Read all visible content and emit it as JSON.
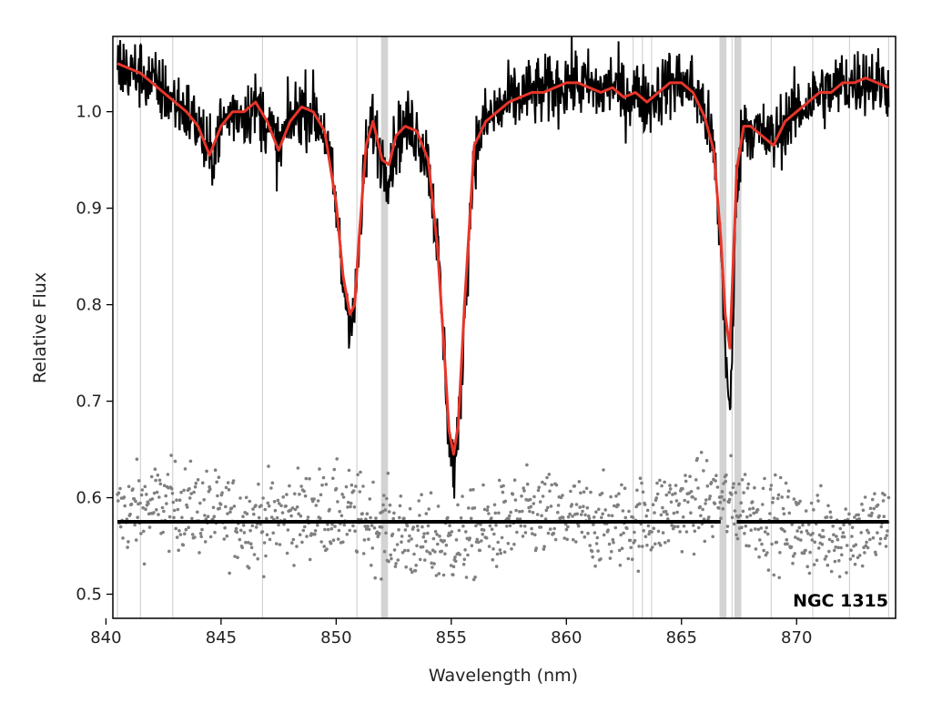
{
  "chart_data": {
    "type": "line",
    "title": "",
    "xlabel": "Wavelength (nm)",
    "ylabel": "Relative Flux",
    "xlim": [
      840.3,
      874.3
    ],
    "ylim": [
      0.475,
      1.078
    ],
    "xticks": [
      840,
      845,
      850,
      855,
      860,
      865,
      870
    ],
    "yticks": [
      0.5,
      0.6,
      0.7,
      0.8,
      0.9,
      1.0
    ],
    "xtick_labels": [
      "840",
      "845",
      "850",
      "855",
      "860",
      "865",
      "870"
    ],
    "ytick_labels": [
      "0.5",
      "0.6",
      "0.7",
      "0.8",
      "0.9",
      "1.0"
    ],
    "grid": false,
    "legend": "none",
    "annotation": "NGC 1315",
    "colors": {
      "observed": "#000000",
      "model": "#e8352a",
      "residuals": "#808080",
      "zero_line": "#000000",
      "masked_regions": "#d3d3d3"
    },
    "masked_lines_nm": [
      840.5,
      841.5,
      842.9,
      846.8,
      850.9,
      852.1,
      862.9,
      863.3,
      863.7,
      866.8,
      867.2,
      867.5,
      868.9,
      870.7,
      872.3,
      874.0
    ],
    "masked_bands_nm": [
      [
        851.95,
        852.25
      ],
      [
        866.65,
        866.95
      ],
      [
        867.3,
        867.6
      ]
    ],
    "series": [
      {
        "style": "line-noisy",
        "role": "observed",
        "x": [
          840.5,
          841.0,
          841.5,
          842.0,
          842.5,
          843.0,
          843.5,
          844.0,
          844.5,
          845.0,
          845.5,
          846.0,
          846.5,
          847.0,
          847.5,
          848.0,
          848.5,
          849.0,
          849.5,
          850.0,
          850.3,
          850.6,
          850.8,
          851.0,
          851.3,
          851.6,
          852.0,
          852.3,
          852.6,
          853.0,
          853.5,
          854.0,
          854.4,
          854.7,
          854.9,
          855.1,
          855.3,
          855.6,
          856.0,
          856.5,
          857.0,
          857.5,
          858.0,
          858.5,
          859.0,
          859.5,
          860.0,
          860.5,
          861.0,
          861.5,
          862.0,
          862.5,
          863.0,
          863.5,
          864.0,
          864.5,
          865.0,
          865.5,
          866.0,
          866.4,
          866.7,
          866.9,
          867.1,
          867.4,
          867.7,
          868.0,
          868.5,
          869.0,
          869.5,
          870.0,
          870.5,
          871.0,
          871.5,
          872.0,
          872.5,
          873.0,
          873.5,
          874.0
        ],
        "y": [
          1.05,
          1.04,
          1.04,
          1.03,
          1.02,
          1.01,
          1.0,
          0.985,
          0.95,
          0.985,
          1.0,
          1.0,
          1.005,
          0.99,
          0.96,
          0.99,
          1.005,
          1.0,
          0.98,
          0.9,
          0.82,
          0.79,
          0.79,
          0.86,
          0.96,
          0.99,
          0.95,
          0.94,
          0.97,
          0.985,
          0.98,
          0.95,
          0.86,
          0.75,
          0.66,
          0.63,
          0.66,
          0.8,
          0.96,
          0.99,
          1.0,
          1.01,
          1.015,
          1.02,
          1.02,
          1.025,
          1.03,
          1.03,
          1.025,
          1.02,
          1.03,
          1.015,
          1.02,
          1.01,
          1.02,
          1.03,
          1.03,
          1.025,
          1.0,
          0.96,
          0.86,
          0.77,
          0.67,
          0.93,
          0.99,
          0.985,
          0.975,
          0.97,
          0.99,
          1.0,
          1.01,
          1.02,
          1.02,
          1.03,
          1.03,
          1.035,
          1.03,
          1.025
        ]
      },
      {
        "style": "line",
        "role": "model",
        "x": [
          840.5,
          841.0,
          841.5,
          842.0,
          842.5,
          843.0,
          843.5,
          844.0,
          844.5,
          845.0,
          845.5,
          846.0,
          846.5,
          847.0,
          847.5,
          848.0,
          848.5,
          849.0,
          849.5,
          850.0,
          850.3,
          850.6,
          850.8,
          851.0,
          851.3,
          851.6,
          852.0,
          852.3,
          852.6,
          853.0,
          853.5,
          854.0,
          854.4,
          854.7,
          854.9,
          855.1,
          855.3,
          855.6,
          856.0,
          856.5,
          857.0,
          857.5,
          858.0,
          858.5,
          859.0,
          859.5,
          860.0,
          860.5,
          861.0,
          861.5,
          862.0,
          862.5,
          863.0,
          863.5,
          864.0,
          864.5,
          865.0,
          865.5,
          866.0,
          866.4,
          866.7,
          866.9,
          867.1,
          867.4,
          867.7,
          868.0,
          868.5,
          869.0,
          869.5,
          870.0,
          870.5,
          871.0,
          871.5,
          872.0,
          872.5,
          873.0,
          873.5,
          874.0
        ],
        "y": [
          1.05,
          1.045,
          1.04,
          1.03,
          1.02,
          1.01,
          1.0,
          0.985,
          0.955,
          0.985,
          1.0,
          1.0,
          1.01,
          0.99,
          0.96,
          0.99,
          1.005,
          1.0,
          0.98,
          0.905,
          0.83,
          0.79,
          0.8,
          0.87,
          0.965,
          0.99,
          0.95,
          0.945,
          0.975,
          0.985,
          0.98,
          0.95,
          0.86,
          0.75,
          0.67,
          0.645,
          0.675,
          0.81,
          0.965,
          0.99,
          1.0,
          1.01,
          1.015,
          1.02,
          1.02,
          1.025,
          1.03,
          1.03,
          1.025,
          1.02,
          1.025,
          1.015,
          1.02,
          1.01,
          1.02,
          1.03,
          1.03,
          1.02,
          0.995,
          0.96,
          0.87,
          0.79,
          0.755,
          0.94,
          0.985,
          0.985,
          0.975,
          0.965,
          0.99,
          1.0,
          1.01,
          1.02,
          1.02,
          1.03,
          1.03,
          1.035,
          1.03,
          1.025
        ]
      },
      {
        "style": "scatter",
        "role": "residuals",
        "x_range": [
          840.5,
          874.0
        ],
        "baseline": 0.575,
        "spread": 0.05
      },
      {
        "style": "line",
        "role": "zero_line",
        "x": [
          840.5,
          866.7,
          867.4,
          874.0
        ],
        "y": [
          0.575,
          0.575,
          0.575,
          0.575
        ]
      }
    ]
  }
}
